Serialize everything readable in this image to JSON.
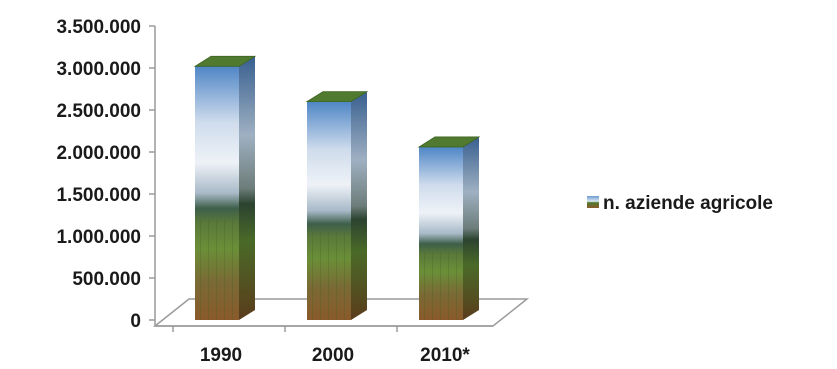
{
  "chart_data": {
    "type": "bar",
    "style": "3d-column-picture-fill",
    "categories": [
      "1990",
      "2000",
      "2010*"
    ],
    "series": [
      {
        "name": "n. aziende agricole",
        "values": [
          3020000,
          2600000,
          2060000
        ]
      }
    ],
    "ylim": [
      0,
      3500000
    ],
    "y_ticks": [
      0,
      500000,
      1000000,
      1500000,
      2000000,
      2500000,
      3000000,
      3500000
    ],
    "y_tick_labels": [
      "0",
      "500.000",
      "1.000.000",
      "1.500.000",
      "2.000.000",
      "2.500.000",
      "3.000.000",
      "3.500.000"
    ],
    "grid": false,
    "legend_position": "right",
    "colors": {
      "sky_top": "#4f86c6",
      "sky_light": "#dfe9f4",
      "field_green": "#5c8a2e",
      "field_brown": "#8a5a2b",
      "top_face": "#4f7a30",
      "axis": "#999999",
      "text": "#1a1a1a"
    }
  }
}
